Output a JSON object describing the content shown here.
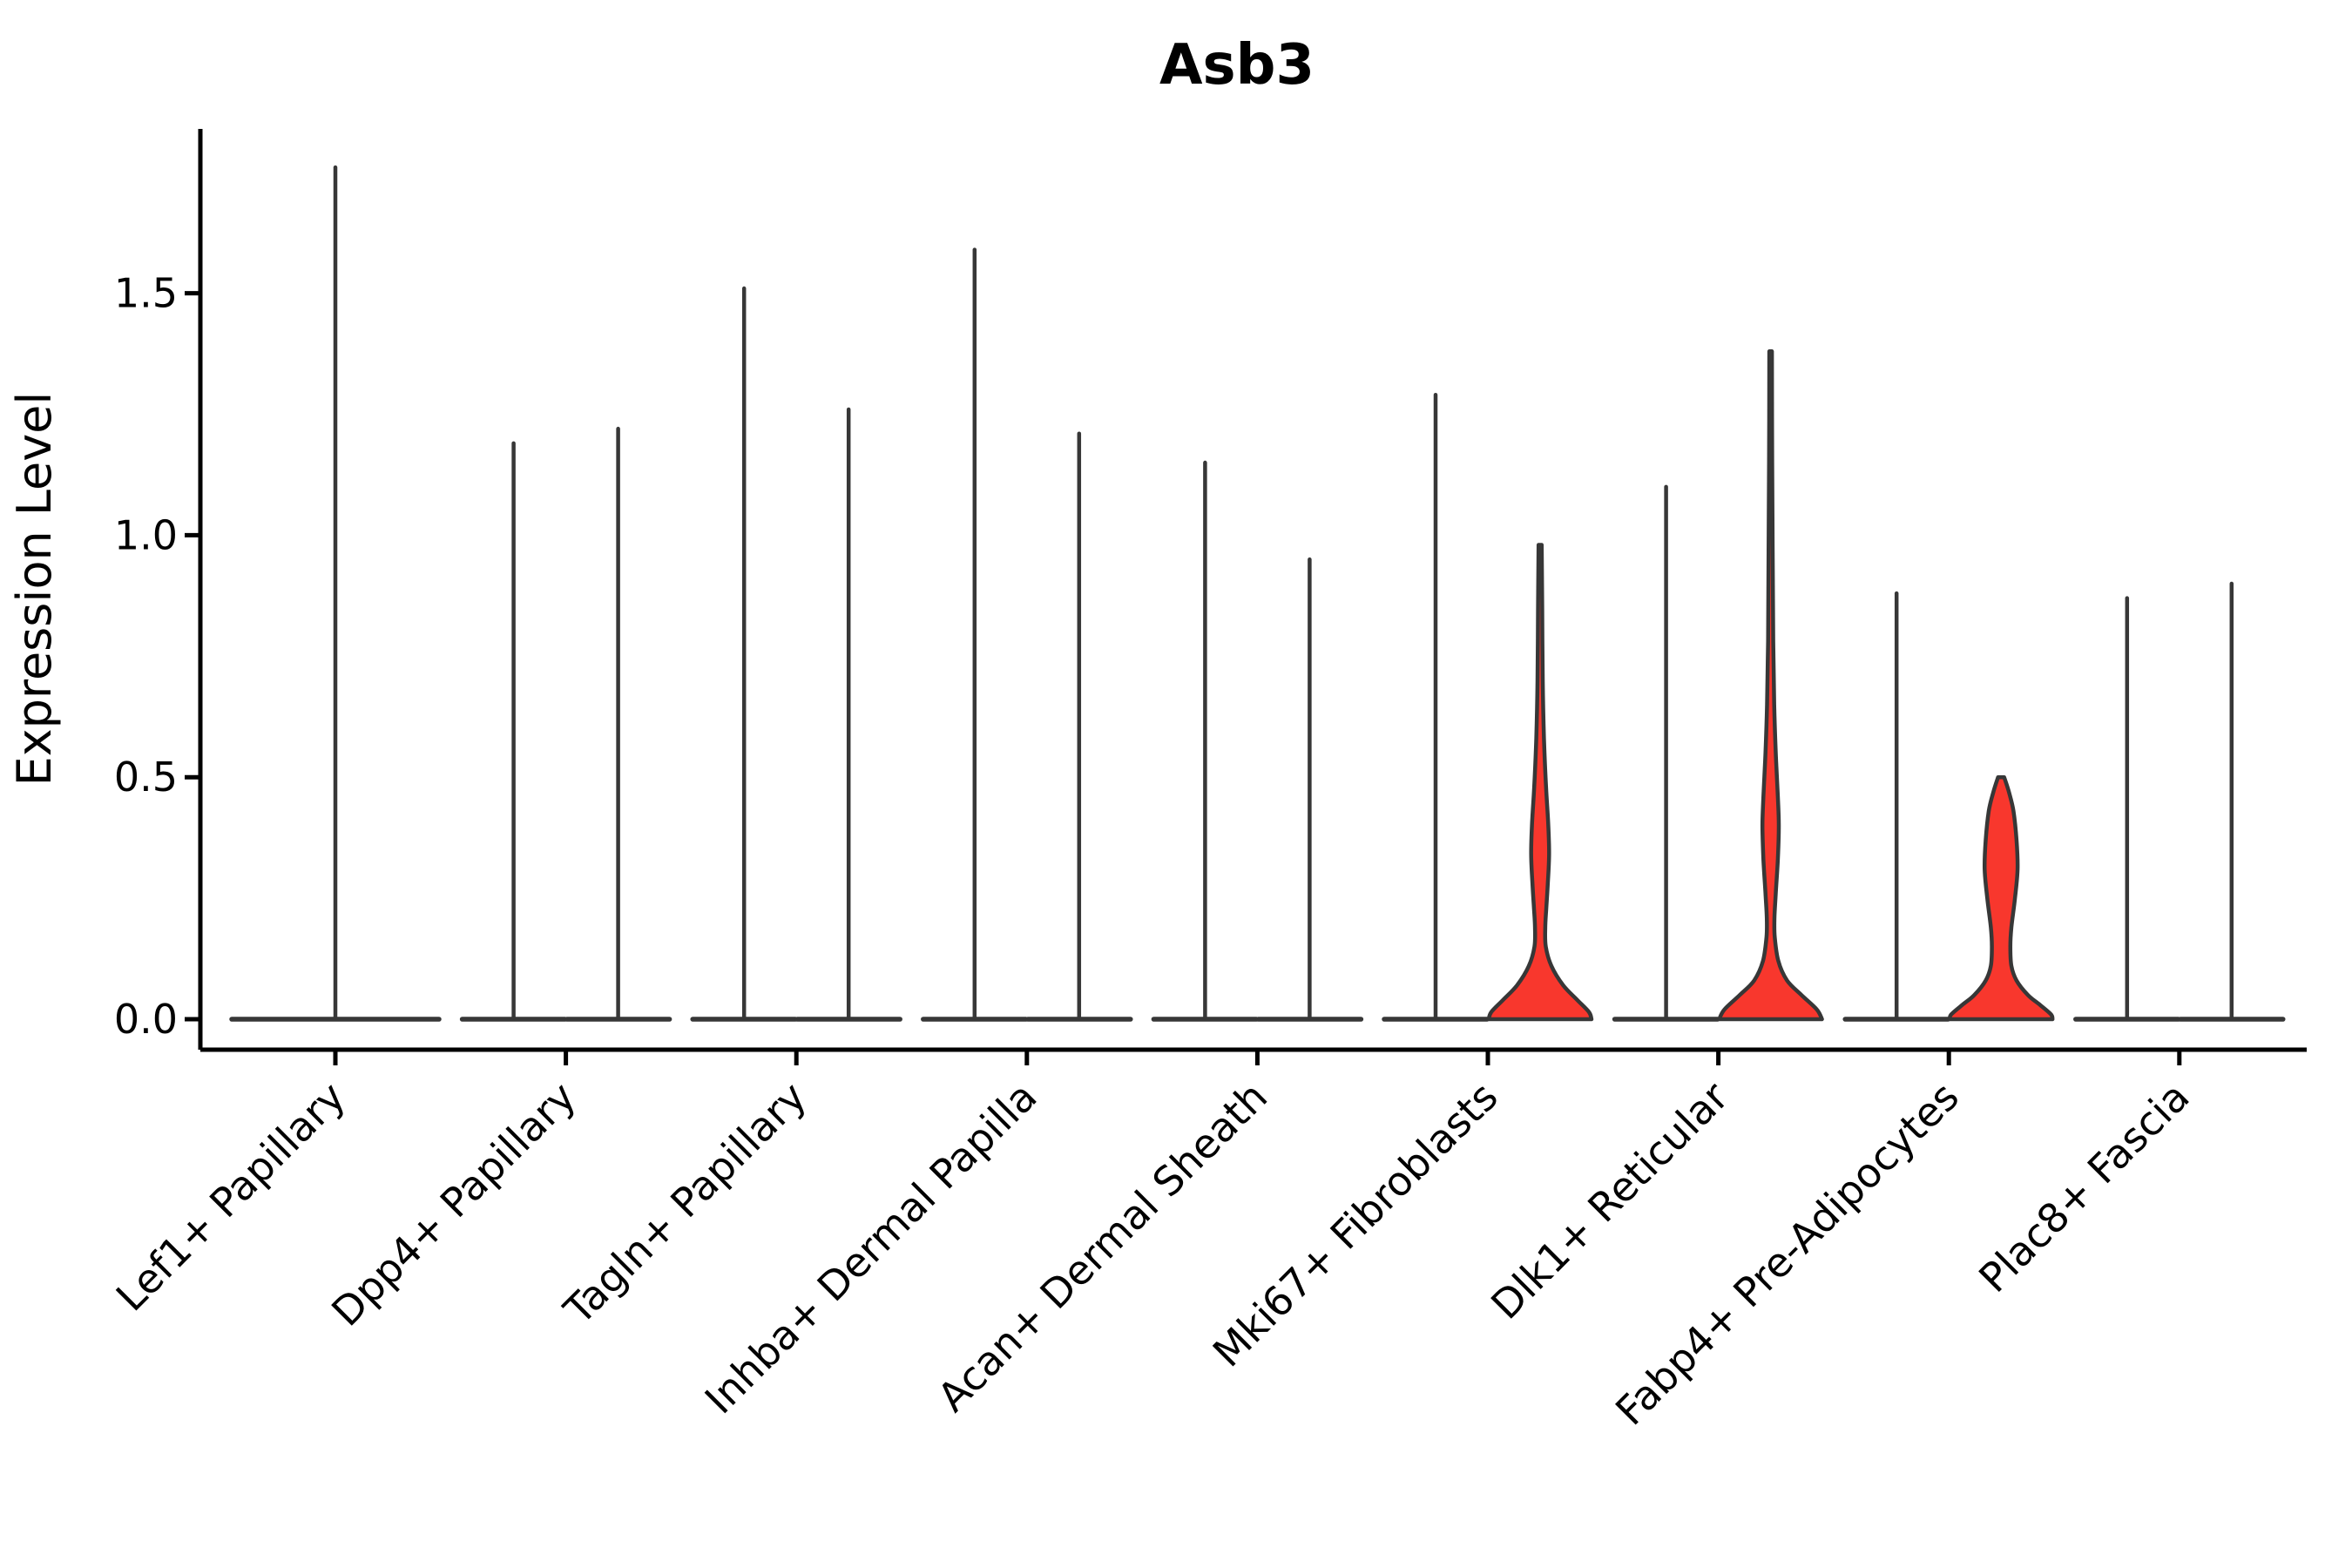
{
  "figure": {
    "title": "Asb3",
    "ylabel": "Expression Level"
  },
  "colors": {
    "red_fill": "#f8372d",
    "violin_outline": "#373737",
    "axis": "#000000",
    "text": "#000000",
    "background": "#ffffff"
  },
  "chart_data": {
    "type": "violin",
    "title": "Asb3",
    "xlabel": "",
    "ylabel": "Expression Level",
    "ylim": [
      0,
      1.85
    ],
    "yticks": [
      0.0,
      0.5,
      1.0,
      1.5
    ],
    "grid": false,
    "legend": "none",
    "categories": [
      "Lef1+ Papillary",
      "Dpp4+ Papillary",
      "Tagln+ Papillary",
      "Inhba+ Dermal Papilla",
      "Acan+ Dermal Sheath",
      "Mki67+ Fibroblasts",
      "Dlk1+ Reticular",
      "Fabp4+ Pre-Adipocytes",
      "Plac8+ Fascia"
    ],
    "note": "Each category holds dodged violins; most collapse to a flat base at 0 with a thin density tail up to max. Red-filled violins have visible density bodies.",
    "groups": [
      {
        "label": "Lef1+ Papillary",
        "violins": [
          {
            "shape": "needle",
            "offset": 0,
            "halfwidth": 119,
            "max": 1.76
          }
        ]
      },
      {
        "label": "Dpp4+ Papillary",
        "violins": [
          {
            "shape": "needle",
            "offset": -60,
            "halfwidth": 59,
            "max": 1.19
          },
          {
            "shape": "needle",
            "offset": 60,
            "halfwidth": 59,
            "max": 1.22
          }
        ]
      },
      {
        "label": "Tagln+ Papillary",
        "violins": [
          {
            "shape": "needle",
            "offset": -60,
            "halfwidth": 59,
            "max": 1.51
          },
          {
            "shape": "needle",
            "offset": 60,
            "halfwidth": 59,
            "max": 1.26
          }
        ]
      },
      {
        "label": "Inhba+ Dermal Papilla",
        "violins": [
          {
            "shape": "needle",
            "offset": -60,
            "halfwidth": 59,
            "max": 1.59
          },
          {
            "shape": "needle",
            "offset": 60,
            "halfwidth": 59,
            "max": 1.21
          }
        ]
      },
      {
        "label": "Acan+ Dermal Sheath",
        "violins": [
          {
            "shape": "needle",
            "offset": -60,
            "halfwidth": 59,
            "max": 1.15
          },
          {
            "shape": "needle",
            "offset": 60,
            "halfwidth": 59,
            "max": 0.95
          }
        ]
      },
      {
        "label": "Mki67+ Fibroblasts",
        "violins": [
          {
            "shape": "needle",
            "offset": -60,
            "halfwidth": 59,
            "max": 1.29
          },
          {
            "shape": "profile",
            "offset": 60,
            "halfwidth": 59,
            "max": 0.98,
            "fill": "red",
            "profile": [
              [
                0.98,
                0.03
              ],
              [
                0.85,
                0.04
              ],
              [
                0.7,
                0.05
              ],
              [
                0.58,
                0.075
              ],
              [
                0.48,
                0.115
              ],
              [
                0.4,
                0.16
              ],
              [
                0.34,
                0.175
              ],
              [
                0.28,
                0.15
              ],
              [
                0.23,
                0.12
              ],
              [
                0.19,
                0.1
              ],
              [
                0.15,
                0.11
              ],
              [
                0.11,
                0.22
              ],
              [
                0.07,
                0.45
              ],
              [
                0.04,
                0.72
              ],
              [
                0.015,
                0.95
              ],
              [
                0.0,
                1.0
              ]
            ]
          }
        ]
      },
      {
        "label": "Dlk1+ Reticular",
        "violins": [
          {
            "shape": "needle",
            "offset": -60,
            "halfwidth": 59,
            "max": 1.1
          },
          {
            "shape": "profile",
            "offset": 60,
            "halfwidth": 59,
            "max": 1.38,
            "fill": "red",
            "profile": [
              [
                1.38,
                0.025
              ],
              [
                1.15,
                0.03
              ],
              [
                0.95,
                0.04
              ],
              [
                0.78,
                0.05
              ],
              [
                0.65,
                0.07
              ],
              [
                0.55,
                0.1
              ],
              [
                0.46,
                0.14
              ],
              [
                0.4,
                0.16
              ],
              [
                0.33,
                0.14
              ],
              [
                0.26,
                0.1
              ],
              [
                0.21,
                0.075
              ],
              [
                0.17,
                0.08
              ],
              [
                0.12,
                0.15
              ],
              [
                0.08,
                0.32
              ],
              [
                0.05,
                0.6
              ],
              [
                0.02,
                0.9
              ],
              [
                0.0,
                1.0
              ]
            ]
          }
        ]
      },
      {
        "label": "Fabp4+ Pre-Adipocytes",
        "violins": [
          {
            "shape": "needle",
            "offset": -60,
            "halfwidth": 59,
            "max": 0.88
          },
          {
            "shape": "profile",
            "offset": 60,
            "halfwidth": 59,
            "max": 0.5,
            "fill": "red",
            "profile": [
              [
                0.5,
                0.06
              ],
              [
                0.47,
                0.15
              ],
              [
                0.43,
                0.24
              ],
              [
                0.37,
                0.3
              ],
              [
                0.31,
                0.32
              ],
              [
                0.25,
                0.27
              ],
              [
                0.19,
                0.2
              ],
              [
                0.15,
                0.18
              ],
              [
                0.11,
                0.2
              ],
              [
                0.08,
                0.3
              ],
              [
                0.05,
                0.52
              ],
              [
                0.03,
                0.75
              ],
              [
                0.01,
                0.97
              ],
              [
                0.0,
                1.0
              ]
            ]
          }
        ]
      },
      {
        "label": "Plac8+ Fascia",
        "violins": [
          {
            "shape": "needle",
            "offset": -60,
            "halfwidth": 59,
            "max": 0.87
          },
          {
            "shape": "needle",
            "offset": 60,
            "halfwidth": 59,
            "max": 0.9
          }
        ]
      }
    ]
  }
}
